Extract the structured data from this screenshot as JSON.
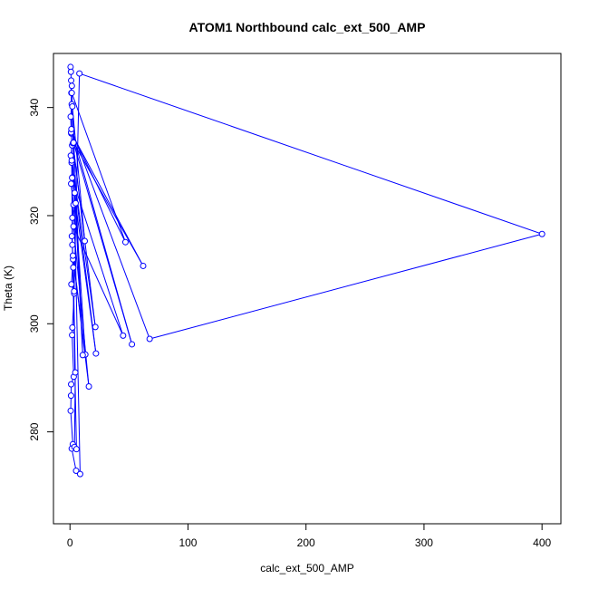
{
  "chart_data": {
    "type": "line",
    "title": "ATOM1 Northbound calc_ext_500_AMP",
    "xlabel": "calc_ext_500_AMP",
    "ylabel": "Theta (K)",
    "xlim": [
      -14,
      416
    ],
    "ylim": [
      263,
      350
    ],
    "xticks": [
      0,
      100,
      200,
      300,
      400
    ],
    "yticks": [
      280,
      300,
      320,
      340
    ],
    "grid": false,
    "legend": "none",
    "series": [
      {
        "color": "#0000ff",
        "marker": "open-circle",
        "line": true,
        "points": [
          [
            0.5,
            347.5
          ],
          [
            0.8,
            346.6
          ],
          [
            1.2,
            342.7
          ],
          [
            1.5,
            340.6
          ],
          [
            0.6,
            338.3
          ],
          [
            1.1,
            335.2
          ],
          [
            1.8,
            333.0
          ],
          [
            0.7,
            331.1
          ],
          [
            1.4,
            329.8
          ],
          [
            2.2,
            327.1
          ],
          [
            1.0,
            325.9
          ],
          [
            3.0,
            322.0
          ],
          [
            2.0,
            319.6
          ],
          [
            4.8,
            322.3
          ],
          [
            1.6,
            316.2
          ],
          [
            2.6,
            311.9
          ],
          [
            1.2,
            307.3
          ],
          [
            3.6,
            305.6
          ],
          [
            2.0,
            299.3
          ],
          [
            1.8,
            297.9
          ],
          [
            3.2,
            290.2
          ],
          [
            1.0,
            288.8
          ],
          [
            0.9,
            286.7
          ],
          [
            0.6,
            283.9
          ],
          [
            2.4,
            277.7
          ],
          [
            1.5,
            276.9
          ],
          [
            5.2,
            272.8
          ],
          [
            8.6,
            272.2
          ],
          [
            2.0,
            340.2
          ],
          [
            12.5,
            315.3
          ],
          [
            2.5,
            333.4
          ],
          [
            21.5,
            299.4
          ],
          [
            1.5,
            330.2
          ],
          [
            22.0,
            294.5
          ],
          [
            1.8,
            327.0
          ],
          [
            45.0,
            297.8
          ],
          [
            3.0,
            318.0
          ],
          [
            16.0,
            288.4
          ],
          [
            2.5,
            312.6
          ],
          [
            13.0,
            294.3
          ],
          [
            4.0,
            324.2
          ],
          [
            10.8,
            294.2
          ],
          [
            1.5,
            342.7
          ],
          [
            47.0,
            315.1
          ],
          [
            1.0,
            335.4
          ],
          [
            62.0,
            310.7
          ],
          [
            3.0,
            333.5
          ],
          [
            52.5,
            296.2
          ],
          [
            1.2,
            336.0
          ],
          [
            67.5,
            297.2
          ],
          [
            400.0,
            316.6
          ],
          [
            8.0,
            346.3
          ],
          [
            3.5,
            306.0
          ],
          [
            2.8,
            310.4
          ],
          [
            4.5,
            291.0
          ],
          [
            3.8,
            277.2
          ],
          [
            5.5,
            276.8
          ],
          [
            2.0,
            314.6
          ],
          [
            1.0,
            345.0
          ],
          [
            1.6,
            344.0
          ]
        ]
      }
    ]
  }
}
